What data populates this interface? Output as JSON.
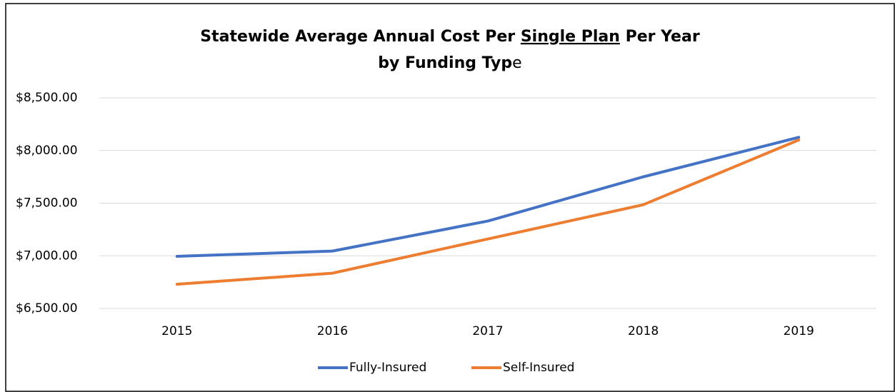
{
  "chart_data": {
    "type": "line",
    "title": [
      "Statewide Average Annual Cost Per",
      "Single Plan",
      "Per Year",
      "by Funding Typ",
      "e"
    ],
    "categories": [
      "2015",
      "2016",
      "2017",
      "2018",
      "2019"
    ],
    "series": [
      {
        "name": "Fully-Insured",
        "color": "#4472c4",
        "values": [
          6995,
          7045,
          7330,
          7750,
          8125
        ]
      },
      {
        "name": "Self-Insured",
        "color": "#ed7d31",
        "values": [
          6730,
          6835,
          7160,
          7485,
          8100
        ]
      }
    ],
    "ylim": [
      6500,
      8500
    ],
    "yticks": [
      {
        "value": 6500,
        "label": "$6,500.00"
      },
      {
        "value": 7000,
        "label": "$7,000.00"
      },
      {
        "value": 7500,
        "label": "$7,500.00"
      },
      {
        "value": 8000,
        "label": "$8,000.00"
      },
      {
        "value": 8500,
        "label": "$8,500.00"
      }
    ],
    "grid": true,
    "legend": "bottom"
  }
}
